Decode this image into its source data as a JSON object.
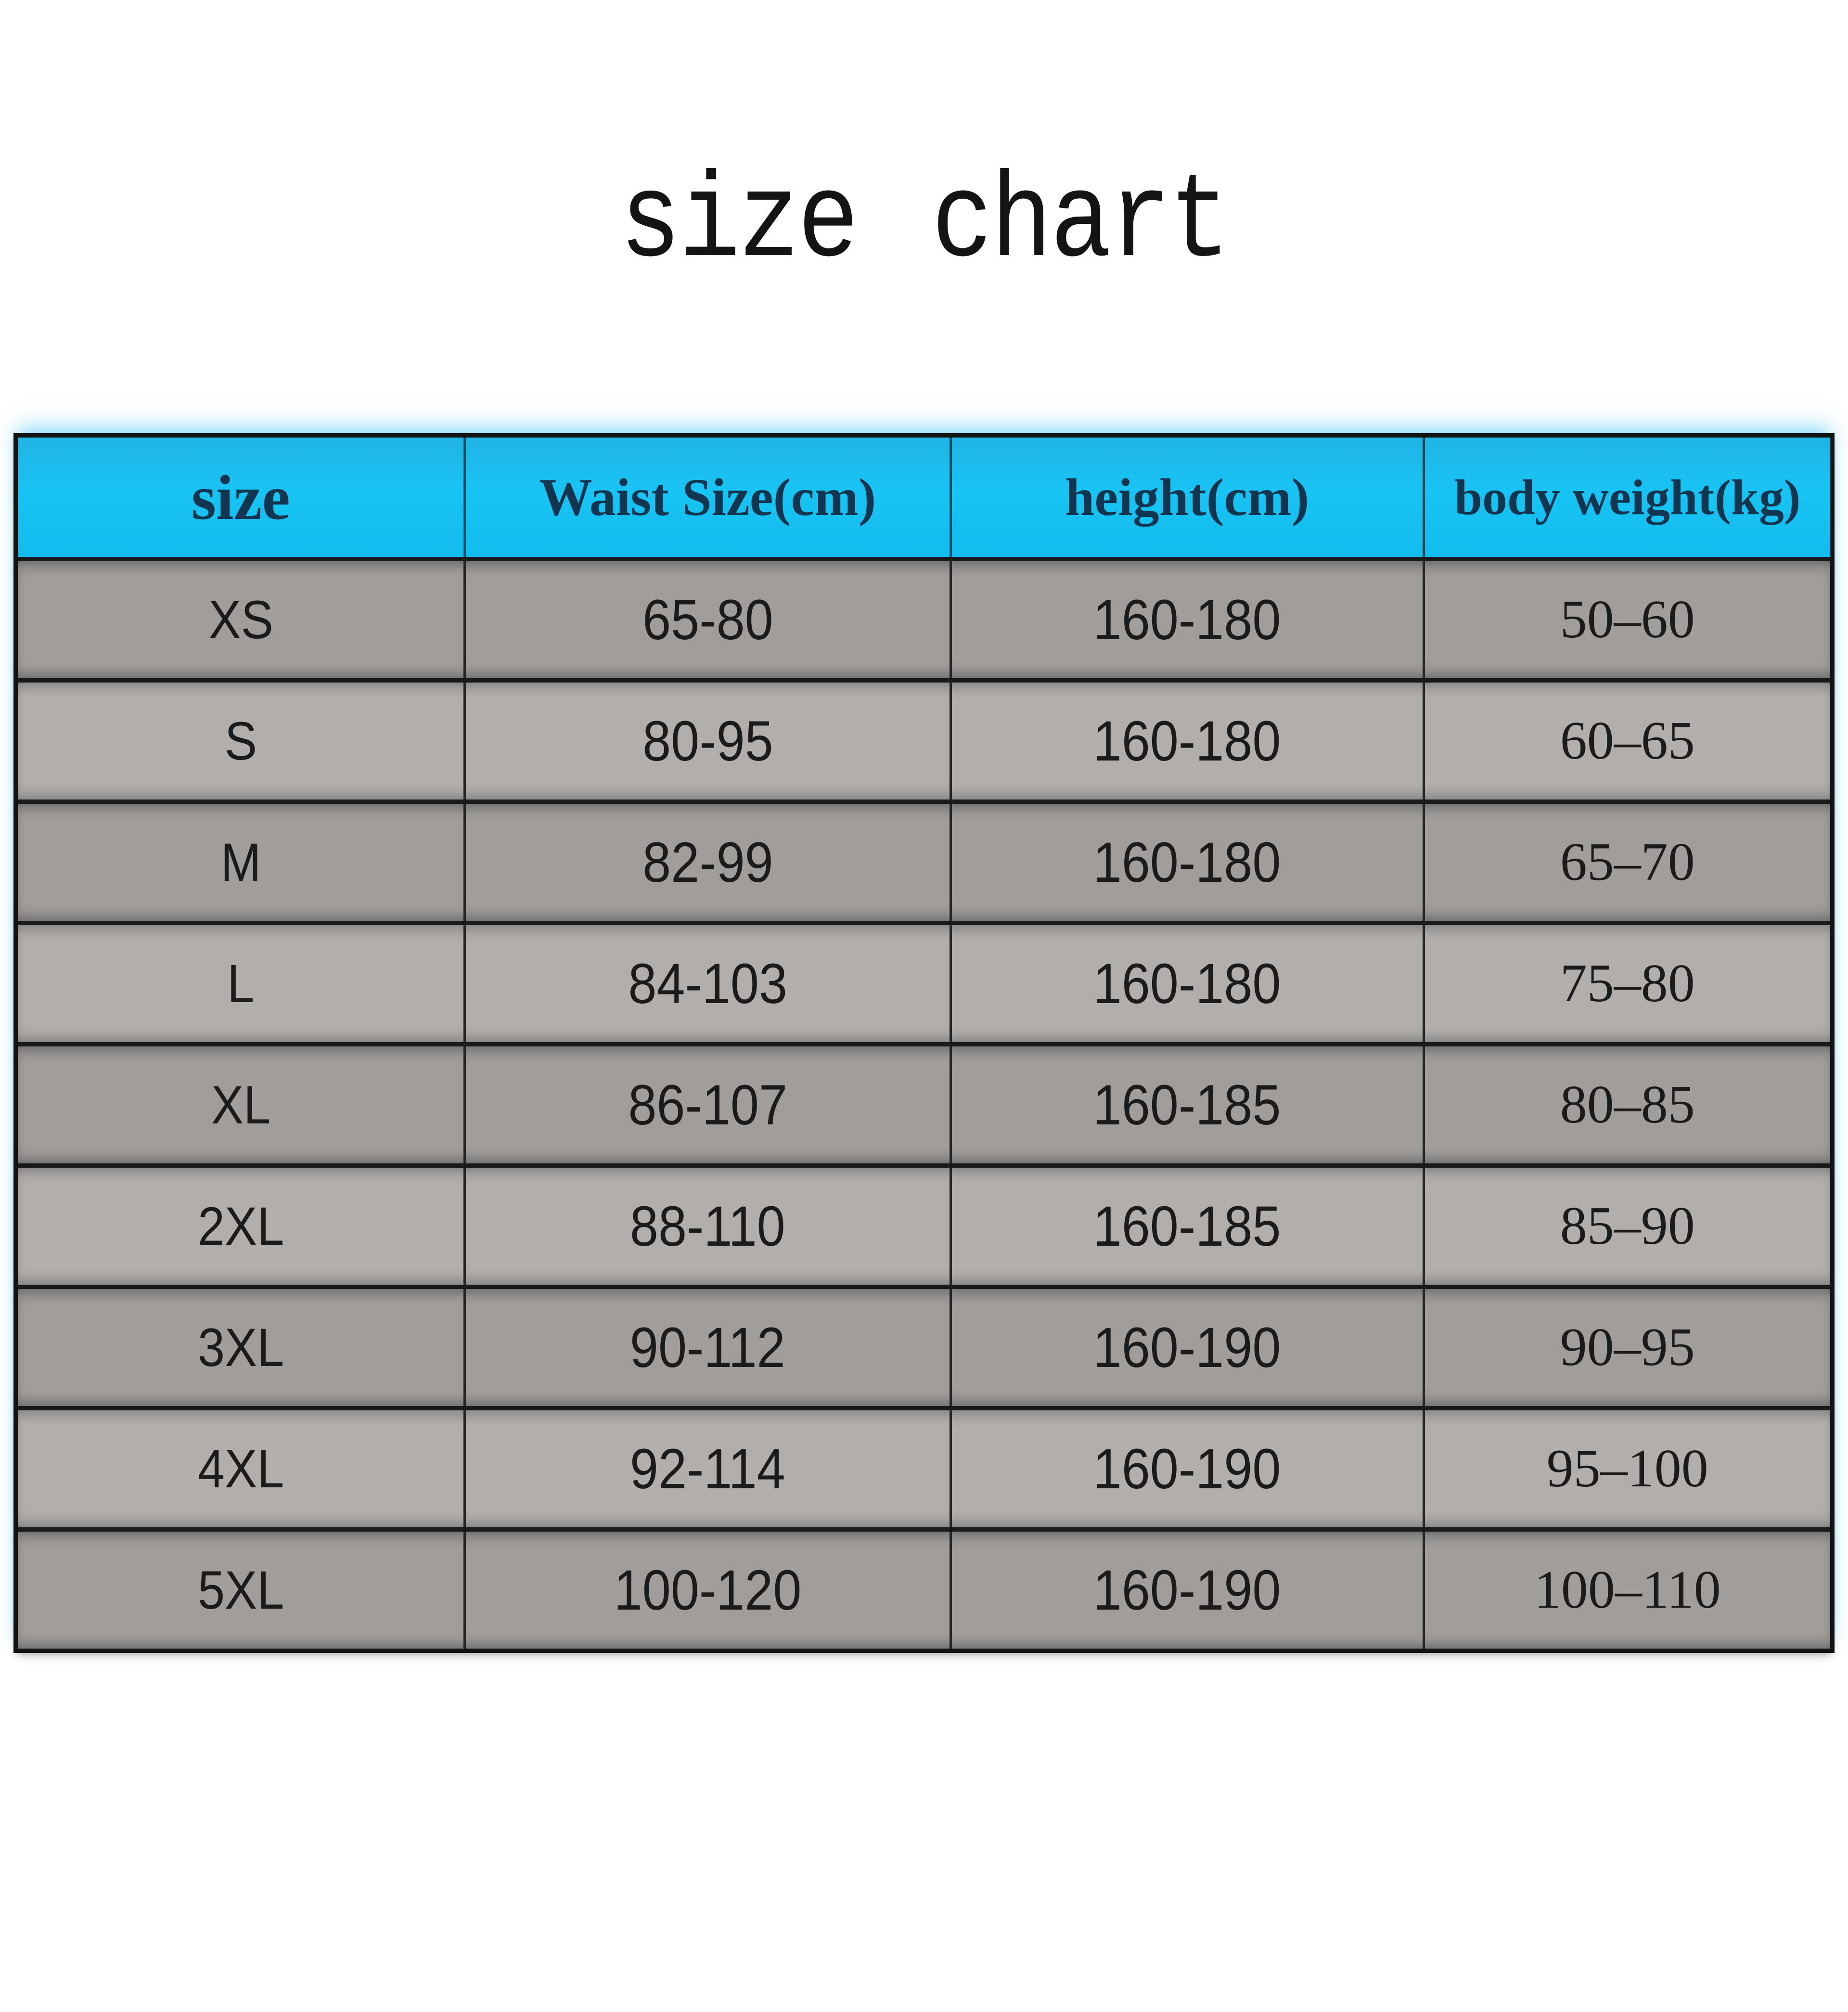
{
  "title": "size chart",
  "chart_data": {
    "type": "table",
    "title": "size chart",
    "columns": [
      "size",
      "Waist Size(cm)",
      "height(cm)",
      "body weight(kg)"
    ],
    "rows": [
      [
        "XS",
        "65-80",
        "160-180",
        "50–60"
      ],
      [
        "S",
        "80-95",
        "160-180",
        "60–65"
      ],
      [
        "M",
        "82-99",
        "160-180",
        "65–70"
      ],
      [
        "L",
        "84-103",
        "160-180",
        "75–80"
      ],
      [
        "XL",
        "86-107",
        "160-185",
        "80–85"
      ],
      [
        "2XL",
        "88-110",
        "160-185",
        "85–90"
      ],
      [
        "3XL",
        "90-112",
        "160-190",
        "90–95"
      ],
      [
        "4XL",
        "92-114",
        "160-190",
        "95–100"
      ],
      [
        "5XL",
        "100-120",
        "160-190",
        "100–110"
      ]
    ]
  },
  "colors": {
    "page_bg": "#ffffff",
    "title_color": "#141414",
    "header_bg": "#18c0f0",
    "header_text": "#133650",
    "row_dark": "#a09d9b",
    "row_light": "#b1aeac",
    "border": "#1a1a1a",
    "divider": "#262626",
    "text": "#1b1b1b"
  }
}
